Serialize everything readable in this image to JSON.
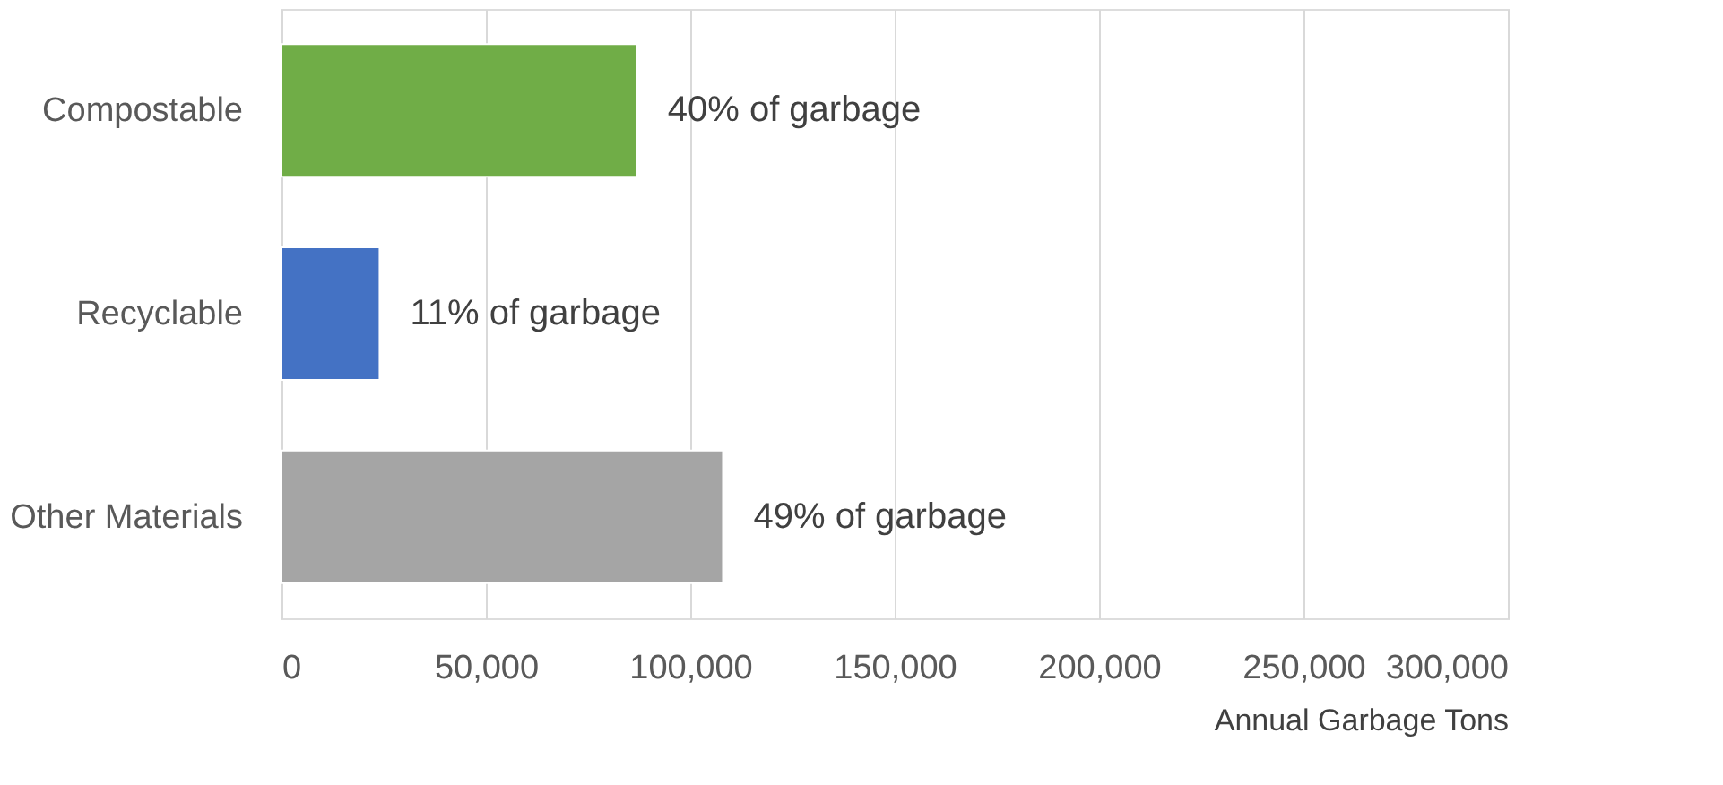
{
  "chart_data": {
    "type": "bar",
    "orientation": "horizontal",
    "xlabel": "Annual Garbage Tons",
    "categories": [
      "Compostable",
      "Recyclable",
      "Other Materials"
    ],
    "values": [
      87000,
      24000,
      108000
    ],
    "colors": [
      "#70ad47",
      "#4472c4",
      "#a5a5a5"
    ],
    "annotations": [
      {
        "text": "40% of garbage",
        "x": 87000,
        "y": "Compostable"
      },
      {
        "text": "11% of garbage",
        "x": 24000,
        "y": "Recyclable"
      },
      {
        "text": "49% of garbage",
        "x": 108000,
        "y": "Other Materials"
      }
    ],
    "xlim": [
      0,
      300000
    ],
    "xticks": [
      0,
      {
        "value": 50000,
        "label": "50,000"
      },
      {
        "value": 100000,
        "label": "100,000"
      },
      {
        "value": 150000,
        "label": "150,000"
      },
      {
        "value": 200000,
        "label": "200,000"
      },
      {
        "value": 250000,
        "label": "250,000"
      },
      {
        "value": 300000,
        "label": "300,000"
      }
    ],
    "grid": "x"
  }
}
